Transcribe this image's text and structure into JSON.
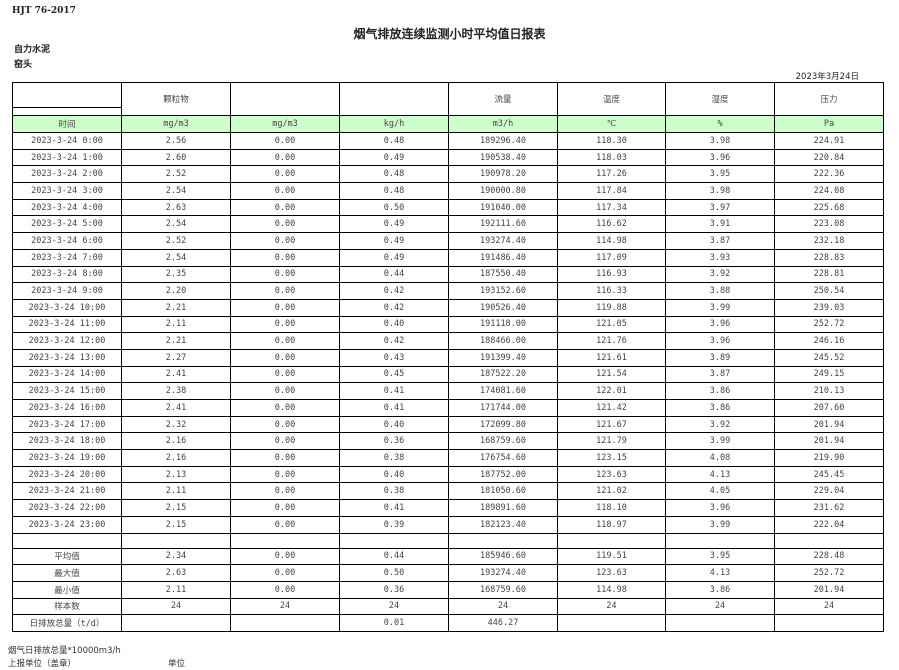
{
  "standard": "HJT  76-2017",
  "title": "烟气排放连续监测小时平均值日报表",
  "organization": "自力水泥",
  "location": "窑头",
  "report_date": "2023年3月24日",
  "header": [
    "",
    "颗粒物",
    "",
    "",
    "流量",
    "温度",
    "湿度",
    "压力"
  ],
  "units": [
    "时间",
    "mg/m3",
    "mg/m3",
    "kg/h",
    "m3/h",
    "℃",
    "%",
    "Pa"
  ],
  "rows": [
    [
      "2023-3-24 0:00",
      "2.56",
      "0.00",
      "0.48",
      "189296.40",
      "118.30",
      "3.98",
      "224.91"
    ],
    [
      "2023-3-24 1:00",
      "2.60",
      "0.00",
      "0.49",
      "190538.40",
      "118.03",
      "3.96",
      "220.84"
    ],
    [
      "2023-3-24 2:00",
      "2.52",
      "0.00",
      "0.48",
      "190978.20",
      "117.26",
      "3.95",
      "222.36"
    ],
    [
      "2023-3-24 3:00",
      "2.54",
      "0.00",
      "0.48",
      "190000.80",
      "117.84",
      "3.98",
      "224.08"
    ],
    [
      "2023-3-24 4:00",
      "2.63",
      "0.00",
      "0.50",
      "191040.00",
      "117.34",
      "3.97",
      "225.68"
    ],
    [
      "2023-3-24 5:00",
      "2.54",
      "0.00",
      "0.49",
      "192111.60",
      "116.62",
      "3.91",
      "223.08"
    ],
    [
      "2023-3-24 6:00",
      "2.52",
      "0.00",
      "0.49",
      "193274.40",
      "114.98",
      "3.87",
      "232.18"
    ],
    [
      "2023-3-24 7:00",
      "2.54",
      "0.00",
      "0.49",
      "191486.40",
      "117.09",
      "3.93",
      "228.83"
    ],
    [
      "2023-3-24 8:00",
      "2.35",
      "0.00",
      "0.44",
      "187550.40",
      "116.93",
      "3.92",
      "228.81"
    ],
    [
      "2023-3-24 9:00",
      "2.20",
      "0.00",
      "0.42",
      "193152.60",
      "116.33",
      "3.88",
      "250.54"
    ],
    [
      "2023-3-24 10:00",
      "2.21",
      "0.00",
      "0.42",
      "190526.40",
      "119.88",
      "3.99",
      "239.03"
    ],
    [
      "2023-3-24 11:00",
      "2.11",
      "0.00",
      "0.40",
      "191118.00",
      "121.05",
      "3.96",
      "252.72"
    ],
    [
      "2023-3-24 12:00",
      "2.21",
      "0.00",
      "0.42",
      "188466.00",
      "121.76",
      "3.96",
      "246.16"
    ],
    [
      "2023-3-24 13:00",
      "2.27",
      "0.00",
      "0.43",
      "191399.40",
      "121.61",
      "3.89",
      "245.52"
    ],
    [
      "2023-3-24 14:00",
      "2.41",
      "0.00",
      "0.45",
      "187522.20",
      "121.54",
      "3.87",
      "249.15"
    ],
    [
      "2023-3-24 15:00",
      "2.38",
      "0.00",
      "0.41",
      "174081.60",
      "122.01",
      "3.86",
      "210.13"
    ],
    [
      "2023-3-24 16:00",
      "2.41",
      "0.00",
      "0.41",
      "171744.00",
      "121.42",
      "3.86",
      "207.60"
    ],
    [
      "2023-3-24 17:00",
      "2.32",
      "0.00",
      "0.40",
      "172099.80",
      "121.67",
      "3.92",
      "201.94"
    ],
    [
      "2023-3-24 18:00",
      "2.16",
      "0.00",
      "0.36",
      "168759.60",
      "121.79",
      "3.99",
      "201.94"
    ],
    [
      "2023-3-24 19:00",
      "2.16",
      "0.00",
      "0.38",
      "176754.60",
      "123.15",
      "4.08",
      "219.90"
    ],
    [
      "2023-3-24 20:00",
      "2.13",
      "0.00",
      "0.40",
      "187752.00",
      "123.63",
      "4.13",
      "245.45"
    ],
    [
      "2023-3-24 21:00",
      "2.11",
      "0.00",
      "0.38",
      "181050.60",
      "121.02",
      "4.05",
      "229.04"
    ],
    [
      "2023-3-24 22:00",
      "2.15",
      "0.00",
      "0.41",
      "189891.60",
      "118.10",
      "3.96",
      "231.62"
    ],
    [
      "2023-3-24 23:00",
      "2.15",
      "0.00",
      "0.39",
      "182123.40",
      "118.97",
      "3.99",
      "222.04"
    ]
  ],
  "stats": [
    [
      "平均值",
      "2.34",
      "0.00",
      "0.44",
      "185946.60",
      "119.51",
      "3.95",
      "228.48"
    ],
    [
      "最大值",
      "2.63",
      "0.00",
      "0.50",
      "193274.40",
      "123.63",
      "4.13",
      "252.72"
    ],
    [
      "最小值",
      "2.11",
      "0.00",
      "0.36",
      "168759.60",
      "114.98",
      "3.86",
      "201.94"
    ],
    [
      "样本数",
      "24",
      "24",
      "24",
      "24",
      "24",
      "24",
      "24"
    ],
    [
      "日排放总量（t/d）",
      "",
      "",
      "0.01",
      "446.27",
      "",
      "",
      ""
    ]
  ],
  "footer": {
    "note": "烟气日排放总量*10000m3/h",
    "reporter": "上报单位（盖章）",
    "unit": "单位"
  }
}
